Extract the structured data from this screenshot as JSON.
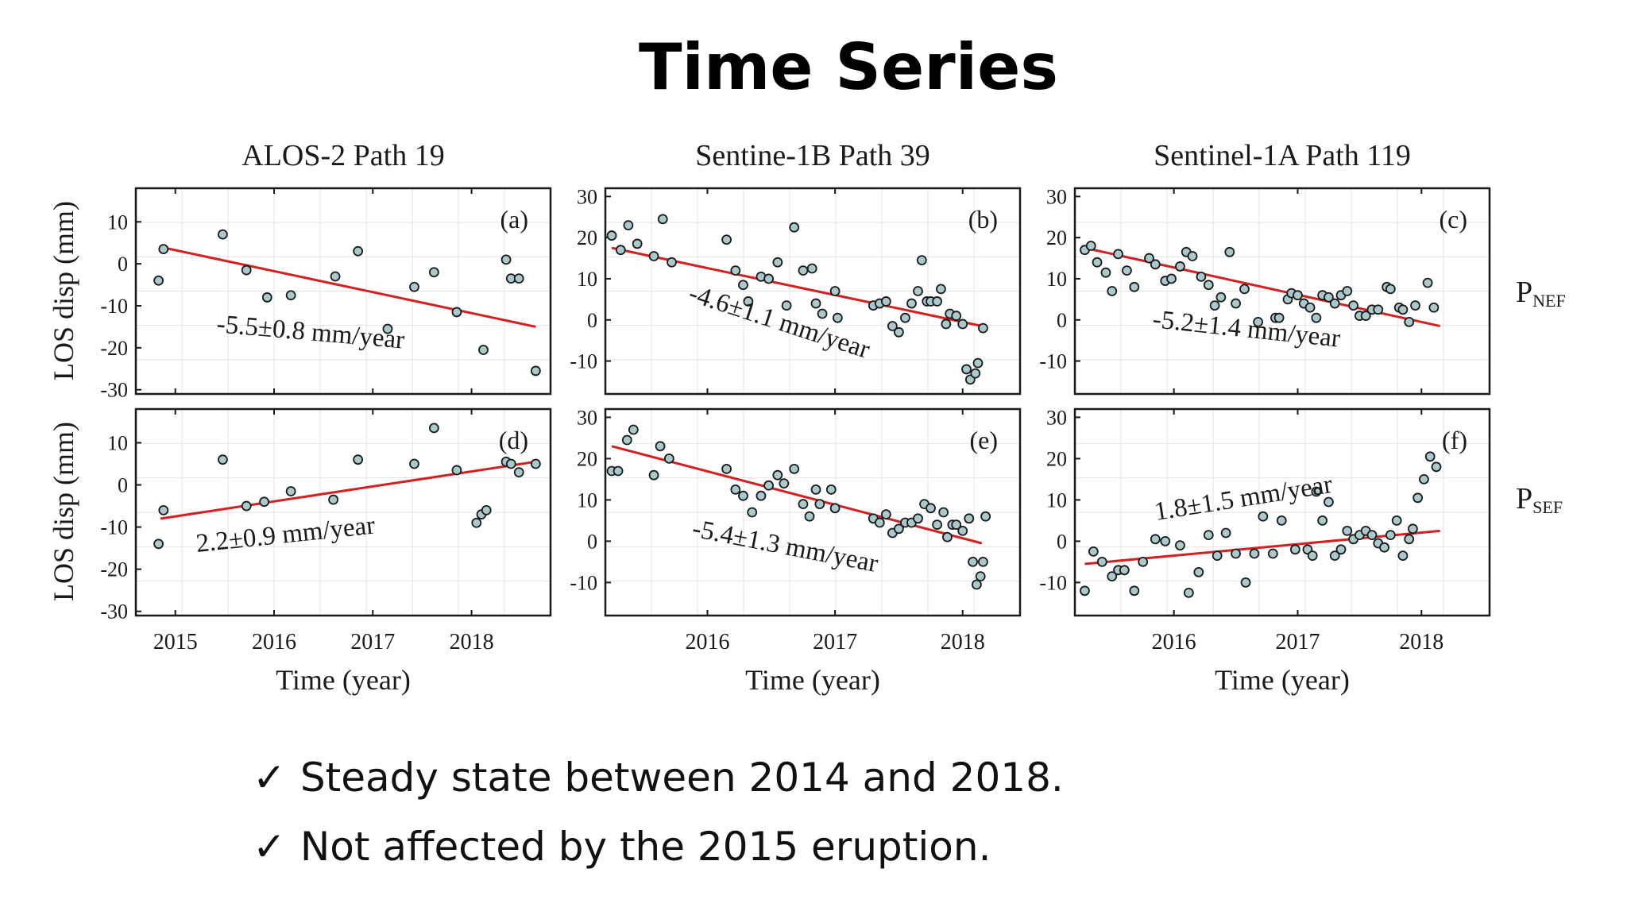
{
  "slide": {
    "title": "Time Series",
    "bullets": [
      {
        "check": "✓",
        "text": "Steady state between 2014 and 2018."
      },
      {
        "check": "✓",
        "text": "Not affected by the 2015 eruption."
      }
    ]
  },
  "row_labels": [
    {
      "main": "P",
      "sub": "NEF"
    },
    {
      "main": "P",
      "sub": "SEF"
    }
  ],
  "columns": [
    {
      "title": "ALOS-2 Path 19",
      "xlabel": "Time (year)",
      "xticks": [
        "2015",
        "2016",
        "2017",
        "2018"
      ]
    },
    {
      "title": "Sentine-1B Path 39",
      "xlabel": "Time (year)",
      "xticks": [
        "2016",
        "2017",
        "2018"
      ]
    },
    {
      "title": "Sentinel-1A Path 119",
      "xlabel": "Time (year)",
      "xticks": [
        "2016",
        "2017",
        "2018"
      ]
    }
  ],
  "ylabel": "LOS disp (mm)",
  "colors": {
    "fit_line": "#d42020",
    "point_fill": "#a9c9cc",
    "point_stroke": "#1a1a1a",
    "frame": "#1a1a1a",
    "grid": "#e3e3e3"
  },
  "chart_data": [
    {
      "type": "scatter",
      "panel": "(a)",
      "annotation": "-5.5±0.8 mm/year",
      "xlim": [
        2014.6,
        2018.8
      ],
      "ylim": [
        -31,
        18
      ],
      "yticks": [
        10,
        0,
        -10,
        -20,
        -30
      ],
      "ytick_side": "left",
      "xticks": [
        2015,
        2016,
        2017,
        2018
      ],
      "grid": true,
      "fit": {
        "x": [
          2014.85,
          2018.65
        ],
        "y": [
          4,
          -15
        ]
      },
      "points": [
        [
          2014.83,
          -4
        ],
        [
          2014.88,
          3.5
        ],
        [
          2015.48,
          7
        ],
        [
          2015.72,
          -1.5
        ],
        [
          2015.93,
          -8
        ],
        [
          2016.17,
          -7.5
        ],
        [
          2016.62,
          -3
        ],
        [
          2016.85,
          3
        ],
        [
          2017.15,
          -15.5
        ],
        [
          2017.42,
          -5.5
        ],
        [
          2017.62,
          -2
        ],
        [
          2017.85,
          -11.5
        ],
        [
          2018.12,
          -20.5
        ],
        [
          2018.35,
          1
        ],
        [
          2018.4,
          -3.5
        ],
        [
          2018.48,
          -3.5
        ],
        [
          2018.65,
          -25.5
        ]
      ]
    },
    {
      "type": "scatter",
      "panel": "(b)",
      "annotation": "-4.6±1.1 mm/year",
      "xlim": [
        2015.2,
        2018.45
      ],
      "ylim": [
        -18,
        32
      ],
      "yticks": [
        30,
        20,
        10,
        0,
        -10
      ],
      "ytick_side": "left",
      "xticks": [
        2016,
        2017,
        2018
      ],
      "grid": true,
      "fit": {
        "x": [
          2015.25,
          2018.15
        ],
        "y": [
          17.5,
          -1.5
        ]
      },
      "points": [
        [
          2015.25,
          20.5
        ],
        [
          2015.32,
          17
        ],
        [
          2015.38,
          23
        ],
        [
          2015.45,
          18.5
        ],
        [
          2015.58,
          15.5
        ],
        [
          2015.65,
          24.5
        ],
        [
          2015.72,
          14
        ],
        [
          2016.15,
          19.5
        ],
        [
          2016.22,
          12
        ],
        [
          2016.28,
          8.5
        ],
        [
          2016.32,
          4.5
        ],
        [
          2016.42,
          10.5
        ],
        [
          2016.48,
          10
        ],
        [
          2016.55,
          14
        ],
        [
          2016.62,
          3.5
        ],
        [
          2016.68,
          22.5
        ],
        [
          2016.75,
          12
        ],
        [
          2016.82,
          12.5
        ],
        [
          2016.85,
          4
        ],
        [
          2016.9,
          1.5
        ],
        [
          2017.0,
          7
        ],
        [
          2017.02,
          0.5
        ],
        [
          2017.3,
          3.5
        ],
        [
          2017.35,
          4
        ],
        [
          2017.4,
          4.5
        ],
        [
          2017.45,
          -1.5
        ],
        [
          2017.5,
          -3
        ],
        [
          2017.55,
          0.5
        ],
        [
          2017.6,
          4
        ],
        [
          2017.65,
          7
        ],
        [
          2017.68,
          14.5
        ],
        [
          2017.72,
          4.5
        ],
        [
          2017.75,
          4.5
        ],
        [
          2017.8,
          4.5
        ],
        [
          2017.83,
          7.5
        ],
        [
          2017.87,
          -1
        ],
        [
          2017.9,
          1.5
        ],
        [
          2017.95,
          1
        ],
        [
          2018.0,
          -1
        ],
        [
          2018.03,
          -12
        ],
        [
          2018.06,
          -14.5
        ],
        [
          2018.1,
          -13
        ],
        [
          2018.12,
          -10.5
        ],
        [
          2018.16,
          -2
        ]
      ]
    },
    {
      "type": "scatter",
      "panel": "(c)",
      "annotation": "-5.2±1.4 mm/year",
      "xlim": [
        2015.2,
        2018.55
      ],
      "ylim": [
        -18,
        32
      ],
      "yticks": [
        30,
        20,
        10,
        0,
        -10
      ],
      "ytick_side": "left",
      "xticks": [
        2016,
        2017,
        2018
      ],
      "grid": true,
      "fit": {
        "x": [
          2015.28,
          2018.15
        ],
        "y": [
          17.5,
          -1.5
        ]
      },
      "points": [
        [
          2015.28,
          17
        ],
        [
          2015.33,
          18
        ],
        [
          2015.38,
          14
        ],
        [
          2015.45,
          11.5
        ],
        [
          2015.5,
          7
        ],
        [
          2015.55,
          16
        ],
        [
          2015.62,
          12
        ],
        [
          2015.68,
          8
        ],
        [
          2015.8,
          15
        ],
        [
          2015.85,
          13.5
        ],
        [
          2015.93,
          9.5
        ],
        [
          2015.98,
          10
        ],
        [
          2016.05,
          13
        ],
        [
          2016.1,
          16.5
        ],
        [
          2016.15,
          15.5
        ],
        [
          2016.22,
          10.5
        ],
        [
          2016.28,
          8.5
        ],
        [
          2016.33,
          3.5
        ],
        [
          2016.38,
          5.5
        ],
        [
          2016.45,
          16.5
        ],
        [
          2016.5,
          4
        ],
        [
          2016.57,
          7.5
        ],
        [
          2016.68,
          -0.5
        ],
        [
          2016.82,
          0.5
        ],
        [
          2016.85,
          0.5
        ],
        [
          2016.92,
          5
        ],
        [
          2016.95,
          6.5
        ],
        [
          2017.0,
          6
        ],
        [
          2017.05,
          4
        ],
        [
          2017.1,
          3
        ],
        [
          2017.15,
          0.5
        ],
        [
          2017.2,
          6
        ],
        [
          2017.25,
          5.5
        ],
        [
          2017.3,
          4
        ],
        [
          2017.35,
          6
        ],
        [
          2017.4,
          7
        ],
        [
          2017.45,
          3.5
        ],
        [
          2017.5,
          1
        ],
        [
          2017.55,
          1
        ],
        [
          2017.6,
          2.5
        ],
        [
          2017.65,
          2.5
        ],
        [
          2017.72,
          8
        ],
        [
          2017.75,
          7.5
        ],
        [
          2017.82,
          3
        ],
        [
          2017.85,
          2.5
        ],
        [
          2017.9,
          -0.5
        ],
        [
          2017.95,
          3.5
        ],
        [
          2018.05,
          9
        ],
        [
          2018.1,
          3
        ]
      ]
    },
    {
      "type": "scatter",
      "panel": "(d)",
      "annotation": "2.2±0.9 mm/year",
      "xlim": [
        2014.6,
        2018.8
      ],
      "ylim": [
        -31,
        18
      ],
      "yticks": [
        10,
        0,
        -10,
        -20,
        -30
      ],
      "ytick_side": "left",
      "xticks": [
        2015,
        2016,
        2017,
        2018
      ],
      "grid": true,
      "fit": {
        "x": [
          2014.85,
          2018.65
        ],
        "y": [
          -8,
          5.5
        ]
      },
      "points": [
        [
          2014.83,
          -14
        ],
        [
          2014.88,
          -6
        ],
        [
          2015.48,
          6
        ],
        [
          2015.72,
          -5
        ],
        [
          2015.9,
          -4
        ],
        [
          2016.17,
          -1.5
        ],
        [
          2016.6,
          -3.5
        ],
        [
          2016.85,
          6
        ],
        [
          2017.42,
          5
        ],
        [
          2017.62,
          13.5
        ],
        [
          2017.85,
          3.5
        ],
        [
          2018.05,
          -9
        ],
        [
          2018.1,
          -7
        ],
        [
          2018.15,
          -6
        ],
        [
          2018.35,
          5.5
        ],
        [
          2018.4,
          5
        ],
        [
          2018.48,
          3
        ],
        [
          2018.65,
          5
        ]
      ]
    },
    {
      "type": "scatter",
      "panel": "(e)",
      "annotation": "-5.4±1.3 mm/year",
      "xlim": [
        2015.2,
        2018.45
      ],
      "ylim": [
        -18,
        32
      ],
      "yticks": [
        30,
        20,
        10,
        0,
        -10
      ],
      "ytick_side": "left",
      "xticks": [
        2016,
        2017,
        2018
      ],
      "grid": true,
      "fit": {
        "x": [
          2015.25,
          2018.15
        ],
        "y": [
          23,
          -0.5
        ]
      },
      "points": [
        [
          2015.25,
          17
        ],
        [
          2015.3,
          17
        ],
        [
          2015.37,
          24.5
        ],
        [
          2015.42,
          27
        ],
        [
          2015.58,
          16
        ],
        [
          2015.63,
          23
        ],
        [
          2015.7,
          20
        ],
        [
          2016.15,
          17.5
        ],
        [
          2016.22,
          12.5
        ],
        [
          2016.28,
          11
        ],
        [
          2016.35,
          7
        ],
        [
          2016.42,
          11
        ],
        [
          2016.48,
          13.5
        ],
        [
          2016.55,
          16
        ],
        [
          2016.6,
          14
        ],
        [
          2016.68,
          17.5
        ],
        [
          2016.75,
          9
        ],
        [
          2016.8,
          6
        ],
        [
          2016.85,
          12.5
        ],
        [
          2016.88,
          9
        ],
        [
          2016.97,
          12.5
        ],
        [
          2017.0,
          8
        ],
        [
          2017.3,
          5.5
        ],
        [
          2017.35,
          4.5
        ],
        [
          2017.4,
          6.5
        ],
        [
          2017.45,
          2
        ],
        [
          2017.5,
          3
        ],
        [
          2017.55,
          4.5
        ],
        [
          2017.6,
          4.5
        ],
        [
          2017.65,
          5.5
        ],
        [
          2017.7,
          9
        ],
        [
          2017.75,
          8
        ],
        [
          2017.8,
          4
        ],
        [
          2017.85,
          7
        ],
        [
          2017.88,
          1
        ],
        [
          2017.92,
          4
        ],
        [
          2017.95,
          4
        ],
        [
          2018.0,
          2.5
        ],
        [
          2018.05,
          5.5
        ],
        [
          2018.08,
          -5
        ],
        [
          2018.11,
          -10.5
        ],
        [
          2018.14,
          -8.5
        ],
        [
          2018.16,
          -5
        ],
        [
          2018.18,
          6
        ]
      ]
    },
    {
      "type": "scatter",
      "panel": "(f)",
      "annotation": "1.8±1.5 mm/year",
      "xlim": [
        2015.2,
        2018.55
      ],
      "ylim": [
        -18,
        32
      ],
      "yticks": [
        30,
        20,
        10,
        0,
        -10
      ],
      "ytick_side": "left",
      "xticks": [
        2016,
        2017,
        2018
      ],
      "grid": true,
      "fit": {
        "x": [
          2015.28,
          2018.15
        ],
        "y": [
          -5.5,
          2.5
        ]
      },
      "points": [
        [
          2015.28,
          -12
        ],
        [
          2015.35,
          -2.5
        ],
        [
          2015.42,
          -5
        ],
        [
          2015.5,
          -8.5
        ],
        [
          2015.55,
          -7
        ],
        [
          2015.6,
          -7
        ],
        [
          2015.68,
          -12
        ],
        [
          2015.75,
          -5
        ],
        [
          2015.85,
          0.5
        ],
        [
          2015.93,
          0
        ],
        [
          2016.05,
          -1
        ],
        [
          2016.12,
          -12.5
        ],
        [
          2016.2,
          -7.5
        ],
        [
          2016.28,
          1.5
        ],
        [
          2016.35,
          -3.5
        ],
        [
          2016.42,
          2
        ],
        [
          2016.5,
          -3
        ],
        [
          2016.58,
          -10
        ],
        [
          2016.65,
          -3
        ],
        [
          2016.72,
          6
        ],
        [
          2016.8,
          -3
        ],
        [
          2016.87,
          5
        ],
        [
          2016.98,
          -2
        ],
        [
          2017.08,
          -2
        ],
        [
          2017.12,
          -3.5
        ],
        [
          2017.15,
          12
        ],
        [
          2017.2,
          5
        ],
        [
          2017.25,
          9.5
        ],
        [
          2017.3,
          -3.5
        ],
        [
          2017.35,
          -2
        ],
        [
          2017.4,
          2.5
        ],
        [
          2017.45,
          0.5
        ],
        [
          2017.5,
          1.5
        ],
        [
          2017.55,
          2.5
        ],
        [
          2017.6,
          1.5
        ],
        [
          2017.65,
          -0.5
        ],
        [
          2017.7,
          -1.5
        ],
        [
          2017.75,
          1.5
        ],
        [
          2017.8,
          5
        ],
        [
          2017.85,
          -3.5
        ],
        [
          2017.9,
          0.5
        ],
        [
          2017.93,
          3
        ],
        [
          2017.97,
          10.5
        ],
        [
          2018.02,
          15
        ],
        [
          2018.07,
          20.5
        ],
        [
          2018.12,
          18
        ]
      ]
    }
  ]
}
